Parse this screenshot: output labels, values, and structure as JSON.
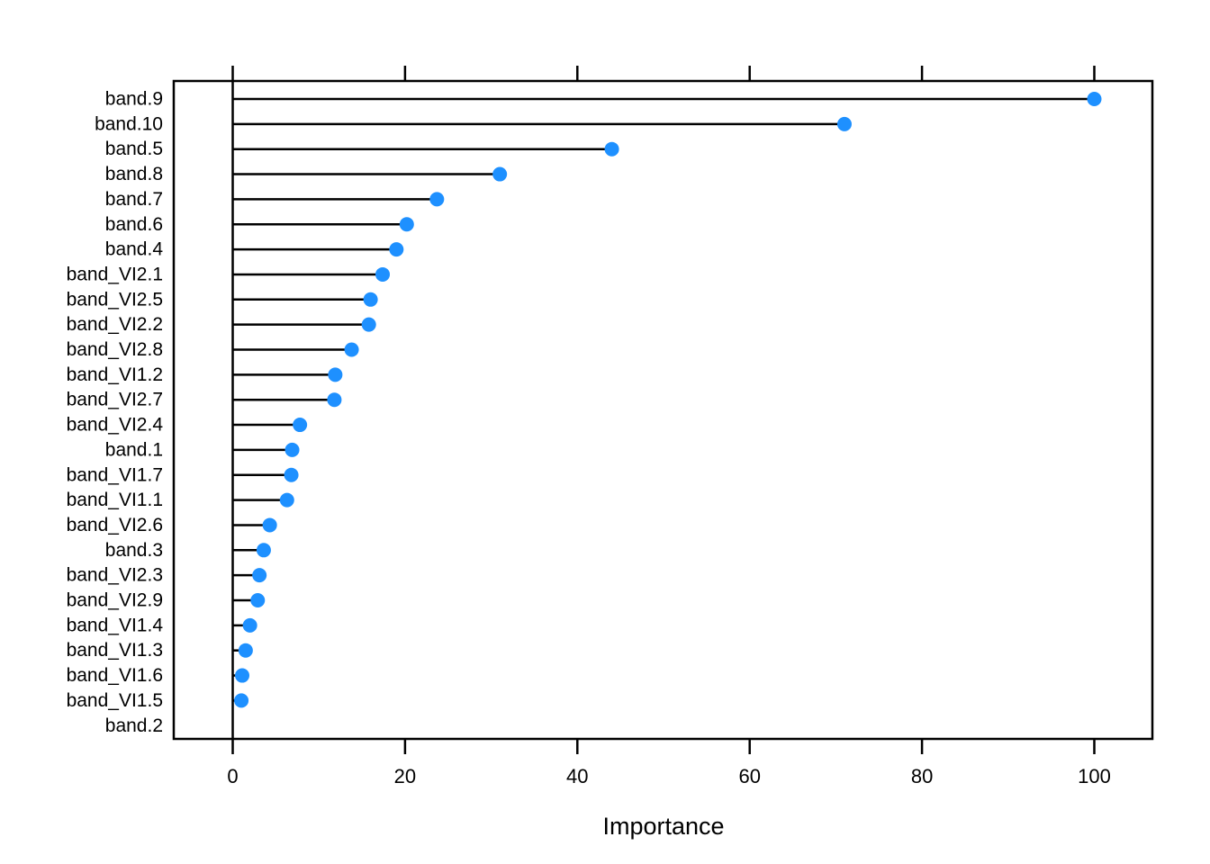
{
  "chart_data": {
    "type": "scatter",
    "subtype": "horizontal-lollipop-dotplot",
    "title": "",
    "xlabel": "Importance",
    "ylabel": "",
    "categories": [
      "band.9",
      "band.10",
      "band.5",
      "band.8",
      "band.7",
      "band.6",
      "band.4",
      "band_VI2.1",
      "band_VI2.5",
      "band_VI2.2",
      "band_VI2.8",
      "band_VI1.2",
      "band_VI2.7",
      "band_VI2.4",
      "band.1",
      "band_VI1.7",
      "band_VI1.1",
      "band_VI2.6",
      "band.3",
      "band_VI2.3",
      "band_VI2.9",
      "band_VI1.4",
      "band_VI1.3",
      "band_VI1.6",
      "band_VI1.5",
      "band.2"
    ],
    "values": [
      100,
      71,
      44,
      31,
      23.7,
      20.2,
      19.0,
      17.4,
      16.0,
      15.8,
      13.8,
      11.9,
      11.8,
      7.8,
      6.9,
      6.8,
      6.3,
      4.3,
      3.6,
      3.1,
      2.9,
      2.0,
      1.5,
      1.1,
      1.0,
      0
    ],
    "x_ticks": [
      0,
      20,
      40,
      60,
      80,
      100
    ],
    "xlim": [
      -6.8,
      106.8
    ],
    "grid": false,
    "legend": false,
    "baseline_value": 0,
    "colors": {
      "dot": "#1E90FF",
      "line": "#000000",
      "box": "#000000",
      "text": "#000000",
      "background": "#FFFFFF"
    }
  }
}
